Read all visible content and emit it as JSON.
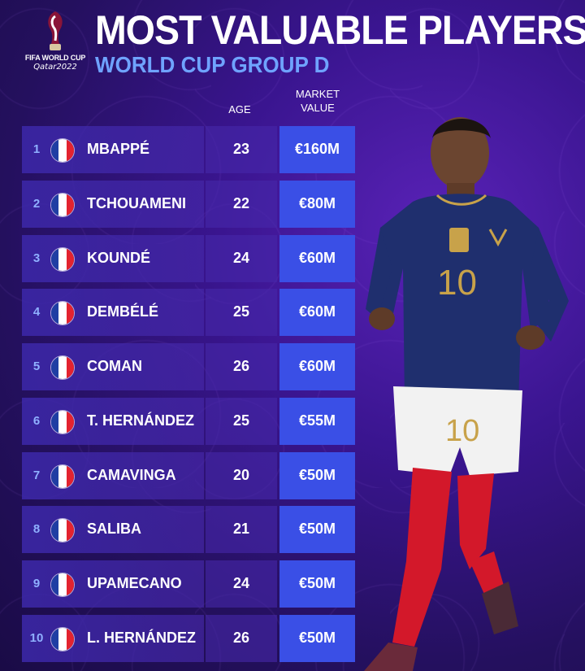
{
  "logo": {
    "line1": "FIFA WORLD CUP",
    "line2": "Qatar2022"
  },
  "title": "MOST VALUABLE PLAYERS",
  "subtitle": "WORLD CUP GROUP D",
  "headers": {
    "age": "AGE",
    "market_value_line1": "MARKET",
    "market_value_line2": "VALUE"
  },
  "players": [
    {
      "rank": "1",
      "name": "MBAPPÉ",
      "age": "23",
      "value": "€160M"
    },
    {
      "rank": "2",
      "name": "TCHOUAMENI",
      "age": "22",
      "value": "€80M"
    },
    {
      "rank": "3",
      "name": "KOUNDÉ",
      "age": "24",
      "value": "€60M"
    },
    {
      "rank": "4",
      "name": "DEMBÉLÉ",
      "age": "25",
      "value": "€60M"
    },
    {
      "rank": "5",
      "name": "COMAN",
      "age": "26",
      "value": "€60M"
    },
    {
      "rank": "6",
      "name": "T. HERNÁNDEZ",
      "age": "25",
      "value": "€55M"
    },
    {
      "rank": "7",
      "name": "CAMAVINGA",
      "age": "20",
      "value": "€50M"
    },
    {
      "rank": "8",
      "name": "SALIBA",
      "age": "21",
      "value": "€50M"
    },
    {
      "rank": "9",
      "name": "UPAMECANO",
      "age": "24",
      "value": "€50M"
    },
    {
      "rank": "10",
      "name": "L. HERNÁNDEZ",
      "age": "26",
      "value": "€50M"
    }
  ],
  "flag_icon": "france-flag-icon",
  "colors": {
    "accent_blue": "#3a4fe6",
    "subtitle_blue": "#6fa3ff",
    "rank_blue": "#8fb0ff"
  }
}
